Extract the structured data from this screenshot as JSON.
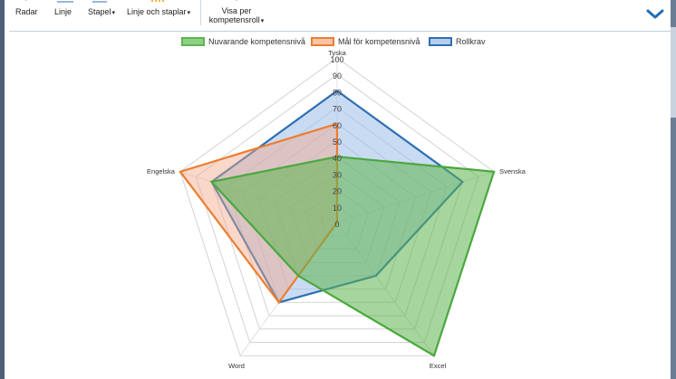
{
  "toolbar": {
    "radar_label": "Radar",
    "line_label": "Linje",
    "bar_label": "Stapel",
    "line_bar_label": "Linje och staplar",
    "view_label_1": "Visa per",
    "view_label_2": "kompetensroll",
    "caret": "▾"
  },
  "legend": {
    "items": [
      {
        "label": "Nuvarande kompetensnivå",
        "fill": "#8fcf86",
        "stroke": "#5cb54f"
      },
      {
        "label": "Mål för kompetensnivå",
        "fill": "#f6c6a4",
        "stroke": "#ed7d31"
      },
      {
        "label": "Rollkrav",
        "fill": "#b7cdec",
        "stroke": "#2e6fb3"
      }
    ]
  },
  "colors": {
    "accent": "#1f6fb3",
    "grid": "#d3d3d3",
    "axis": "#e0e0e0"
  },
  "chart_data": {
    "type": "radar",
    "axes": [
      "Tyska",
      "Svenska",
      "Excel",
      "Word",
      "Engelska"
    ],
    "r_ticks": [
      0,
      10,
      20,
      30,
      40,
      50,
      60,
      70,
      80,
      90,
      100
    ],
    "r_range": [
      0,
      100
    ],
    "grid": true,
    "legend_position": "top",
    "series": [
      {
        "name": "Rollkrav",
        "values": [
          80,
          80,
          40,
          60,
          80
        ],
        "fill": "#9dbde7",
        "stroke": "#2e6fb3",
        "opacity": 0.55
      },
      {
        "name": "Mål för kompetensnivå",
        "values": [
          60,
          0,
          0,
          60,
          100
        ],
        "fill": "#f2a98a",
        "stroke": "#ed7d31",
        "opacity": 0.45
      },
      {
        "name": "Nuvarande kompetensnivå",
        "values": [
          40,
          100,
          100,
          40,
          80
        ],
        "fill": "#5cb54f",
        "stroke": "#4aa83d",
        "opacity": 0.55
      }
    ]
  }
}
